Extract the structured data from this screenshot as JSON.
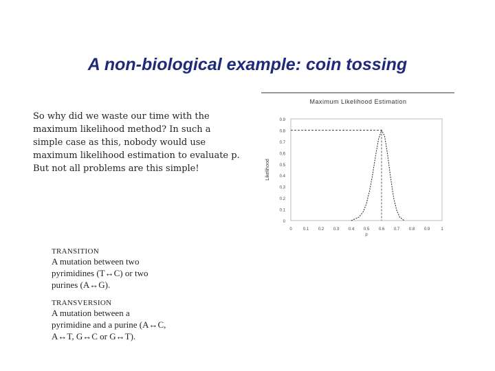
{
  "slide": {
    "title": "A non-biological example: coin tossing",
    "body": "So why did we waste our time with the maximum likelihood method? In such a simple case as this, nobody would use maximum likelihood estimation to evaluate p. But not all problems are this simple!"
  },
  "definitions": [
    {
      "heading": "TRANSITION",
      "lines": [
        "A mutation between two",
        "pyrimidines (T↔C) or two",
        "purines (A↔G)."
      ]
    },
    {
      "heading": "TRANSVERSION",
      "lines": [
        "A mutation between a",
        "pyrimidine and a purine (A↔C,",
        "A↔T, G↔C or G↔T)."
      ]
    }
  ],
  "chart_data": {
    "type": "line",
    "title": "Maximum Likelihood Estimation",
    "xlabel": "p",
    "ylabel": "Likelihood",
    "xlim": [
      0,
      1
    ],
    "ylim": [
      0,
      0.9
    ],
    "x_ticks": [
      "0",
      "0.1",
      "0.2",
      "0.3",
      "0.4",
      "0.5",
      "0.6",
      "0.7",
      "0.8",
      "0.9",
      "1"
    ],
    "y_ticks": [
      "0",
      "0.1",
      "0.2",
      "0.3",
      "0.4",
      "0.5",
      "0.6",
      "0.7",
      "0.8",
      "0.9"
    ],
    "peak": {
      "x": 0.6,
      "y": 0.8
    },
    "series": [
      {
        "values": [
          [
            0.4,
            0.0
          ],
          [
            0.45,
            0.03
          ],
          [
            0.48,
            0.08
          ],
          [
            0.5,
            0.15
          ],
          [
            0.52,
            0.26
          ],
          [
            0.54,
            0.4
          ],
          [
            0.56,
            0.57
          ],
          [
            0.58,
            0.72
          ],
          [
            0.6,
            0.8
          ],
          [
            0.62,
            0.75
          ],
          [
            0.64,
            0.58
          ],
          [
            0.66,
            0.38
          ],
          [
            0.68,
            0.2
          ],
          [
            0.7,
            0.09
          ],
          [
            0.72,
            0.03
          ],
          [
            0.75,
            0.0
          ]
        ]
      }
    ]
  }
}
